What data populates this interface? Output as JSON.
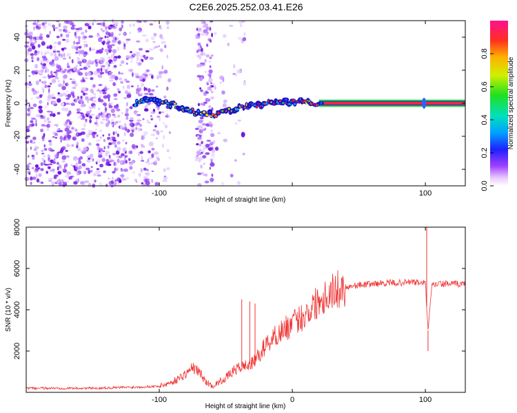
{
  "title": "C2E6.2025.252.03.41.E26",
  "chart_data": [
    {
      "type": "heatmap",
      "name": "spectrogram",
      "xlabel": "Height of straight line (km)",
      "ylabel": "Frequency (Hz)",
      "xlim": [
        -200,
        130
      ],
      "ylim": [
        -50,
        50
      ],
      "xticks": [
        -100,
        0,
        100
      ],
      "xtick_labels": [
        "-100",
        "",
        "100"
      ],
      "yticks": [
        -40,
        -20,
        0,
        20,
        40
      ],
      "colorbar": {
        "label": "Normalized spectral amplitude",
        "range": [
          0,
          1
        ],
        "ticks": [
          0.0,
          0.2,
          0.4,
          0.6,
          0.8
        ],
        "tick_labels": [
          "0.0",
          "0.2",
          "0.4",
          "0.6",
          "0.8"
        ]
      },
      "signal_track": {
        "x": [
          -115,
          -100,
          -90,
          -80,
          -70,
          -60,
          -50,
          -40,
          -30,
          -20,
          -10,
          0,
          10,
          20,
          100,
          130
        ],
        "freq": [
          2,
          1,
          -1,
          -4,
          -6,
          -7,
          -5,
          -3,
          -1,
          0,
          1,
          1,
          1,
          0,
          0,
          0
        ]
      }
    },
    {
      "type": "line",
      "name": "snr",
      "xlabel": "Height of straight line (km)",
      "ylabel": "SNR (10 * v/v)",
      "xlim": [
        -200,
        130
      ],
      "ylim": [
        0,
        8000
      ],
      "xticks": [
        -100,
        0,
        100
      ],
      "xtick_labels": [
        "-100",
        "0",
        "100"
      ],
      "yticks": [
        2000,
        4000,
        6000,
        8000
      ],
      "color": "#f03030",
      "x": [
        -200,
        -150,
        -120,
        -100,
        -90,
        -80,
        -75,
        -70,
        -65,
        -60,
        -50,
        -45,
        -40,
        -35,
        -30,
        -25,
        -20,
        -10,
        0,
        10,
        20,
        30,
        40,
        50,
        60,
        70,
        80,
        90,
        95,
        100,
        102,
        105,
        110,
        120,
        130
      ],
      "y": [
        200,
        200,
        250,
        300,
        500,
        900,
        1200,
        1000,
        500,
        300,
        700,
        1000,
        1200,
        1300,
        1400,
        1800,
        2300,
        2900,
        3300,
        3800,
        4500,
        4900,
        5100,
        5200,
        5250,
        5300,
        5300,
        5350,
        5300,
        5300,
        3000,
        5200,
        5250,
        5250,
        5250
      ],
      "spikes": [
        {
          "x": -38,
          "y": 4500
        },
        {
          "x": -32,
          "y": 4400
        },
        {
          "x": -28,
          "y": 4300
        },
        {
          "x": 101,
          "y": 8000
        },
        {
          "x": 102,
          "y": 2000
        }
      ]
    }
  ]
}
